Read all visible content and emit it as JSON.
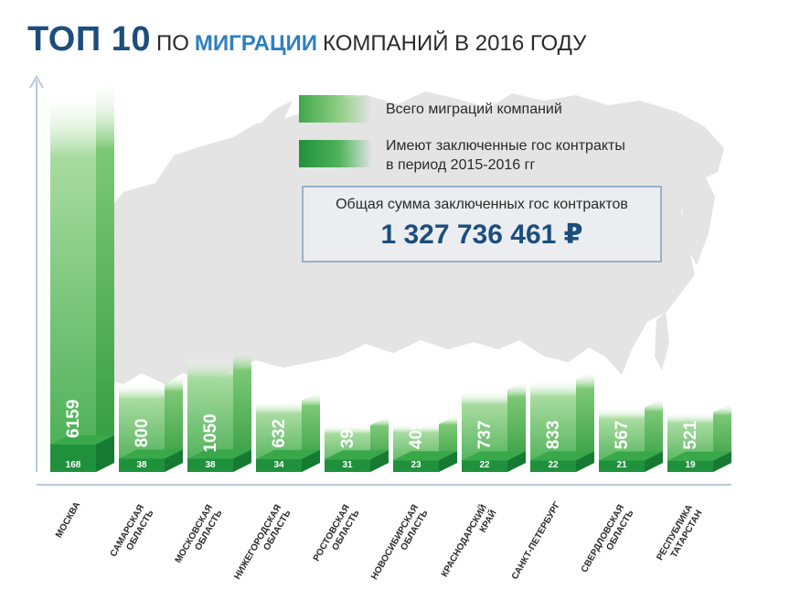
{
  "title": {
    "part1": "ТОП 10",
    "part2": "ПО",
    "part3": "МИГРАЦИИ",
    "part4": "КОМПАНИЙ В 2016 ГОДУ"
  },
  "legend": {
    "total": "Всего миграций компаний",
    "contracts_line1": "Имеют заключенные гос контракты",
    "contracts_line2": "в период 2015-2016 гг"
  },
  "summary": {
    "label": "Общая сумма заключенных гос контрактов",
    "value": "1 327 736 461 ₽"
  },
  "colors": {
    "brand_blue": "#1b4e7d",
    "accent_blue": "#2f7fc0",
    "bar_light_green": "#4fb35a",
    "bar_dark_green": "#1f913d",
    "axis": "#b8c8dc",
    "map": "#e4e4e4"
  },
  "chart_data": {
    "type": "bar",
    "categories": [
      [
        "МОСКВА"
      ],
      [
        "САМАРСКАЯ",
        "ОБЛАСТЬ"
      ],
      [
        "МОСКОВСКАЯ",
        "ОБЛАСТЬ"
      ],
      [
        "НИЖЕГОРОДСКАЯ",
        "ОБЛАСТЬ"
      ],
      [
        "РОСТОВСКАЯ",
        "ОБЛАСТЬ"
      ],
      [
        "НОВОСИБИРСКАЯ",
        "ОБЛАСТЬ"
      ],
      [
        "КРАСНОДАРСКИЙ",
        "КРАЙ"
      ],
      [
        "САНКТ-ПЕТЕРБУРГ"
      ],
      [
        "СВЕРДЛОВСКАЯ",
        "ОБЛАСТЬ"
      ],
      [
        "РЕСПУБЛИКА",
        "ТАТАРСТАН"
      ]
    ],
    "series": [
      {
        "name": "Всего миграций компаний",
        "values": [
          6159,
          800,
          1050,
          632,
          397,
          409,
          737,
          833,
          567,
          521
        ]
      },
      {
        "name": "Имеют заключенные гос контракты в период 2015-2016 гг",
        "values": [
          168,
          38,
          38,
          34,
          31,
          23,
          22,
          22,
          21,
          19
        ]
      }
    ],
    "grid": false
  }
}
